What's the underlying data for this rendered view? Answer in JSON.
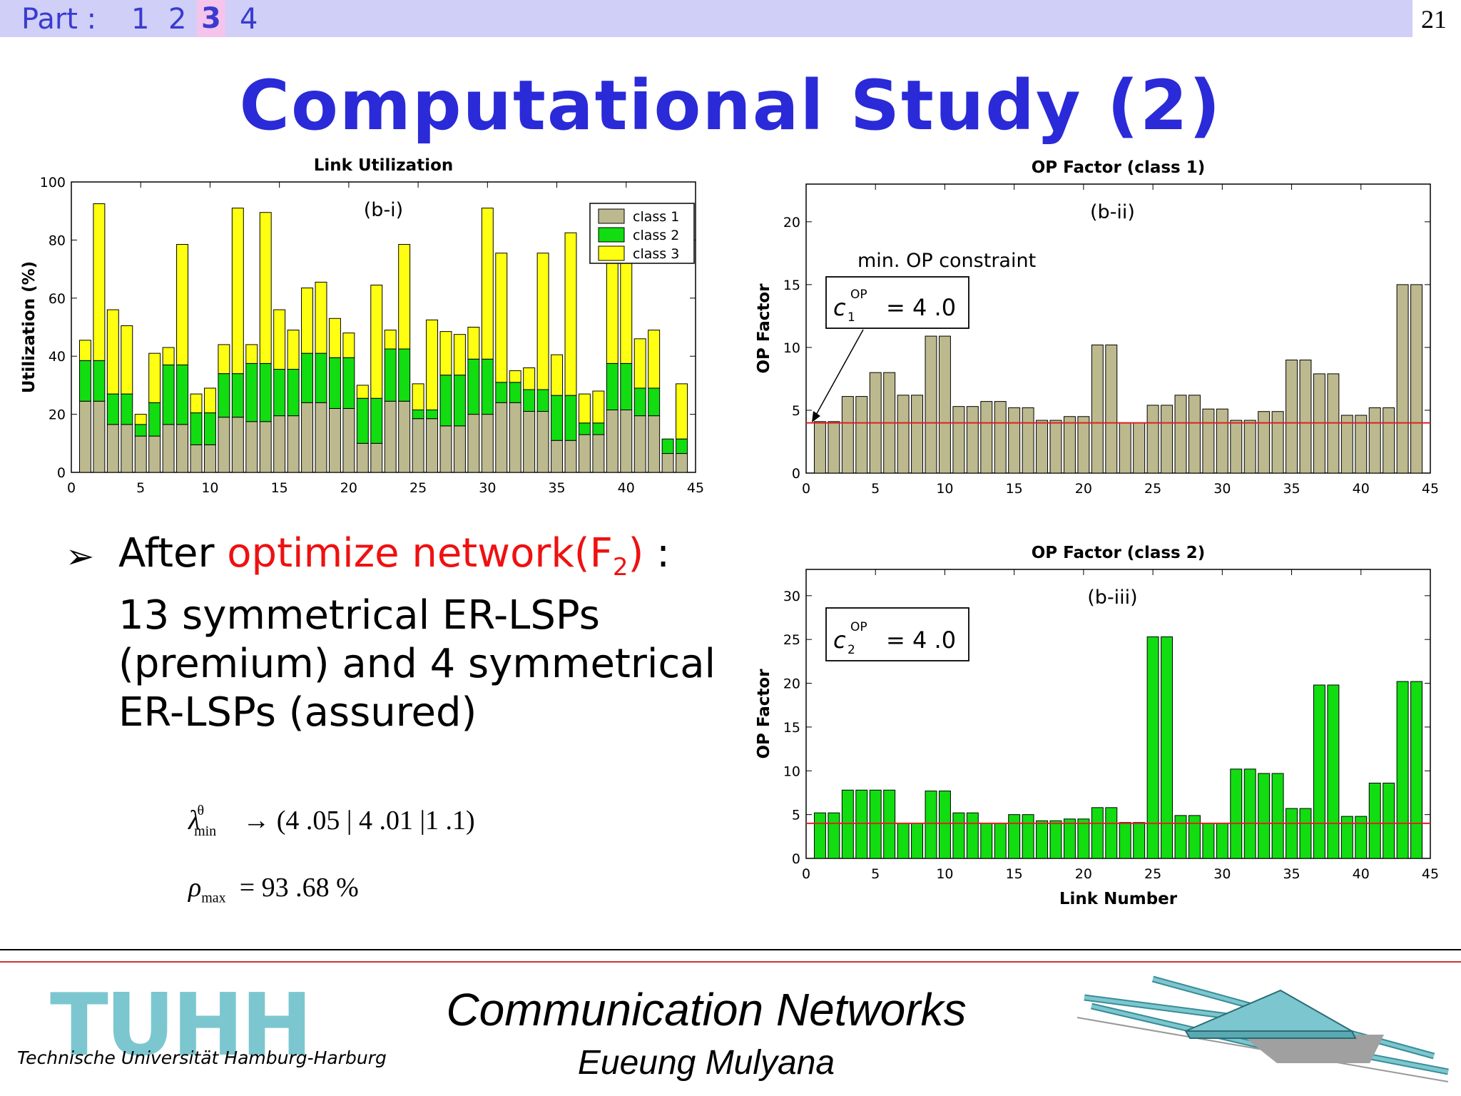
{
  "header": {
    "part_label": "Part :",
    "parts": [
      "1",
      "2",
      "3",
      "4"
    ],
    "active_part": "3",
    "page_number": "21"
  },
  "slide_title": "Computational Study (2)",
  "bullet": {
    "prefix": "After ",
    "highlight": "optimize network(F",
    "highlight_sub": "2",
    "highlight_end": ")",
    "suffix": " : 13 symmetrical ER-LSPs (premium) and 4 symmetrical ER-LSPs (assured)"
  },
  "formulas": {
    "lambda_sup": "θ",
    "lambda_sub": "min",
    "lambda_rhs": "→  (4 .05  | 4 .01  |1 .1)",
    "rho_sub": "max",
    "rho_rhs": "=  93 .68  %"
  },
  "footer": {
    "title": "Communication Networks",
    "author": "Eueung Mulyana",
    "logo": "TUHH",
    "logo_subtitle": "Technische Universität Hamburg-Harburg"
  },
  "chart_data": [
    {
      "type": "bar",
      "stacked": true,
      "title": "Link Utilization",
      "panel_label": "(b-i)",
      "xlabel": "",
      "ylabel": "Utilization (%)",
      "xlim": [
        0,
        45
      ],
      "ylim": [
        0,
        100
      ],
      "xticks": [
        0,
        5,
        10,
        15,
        20,
        25,
        30,
        35,
        40,
        45
      ],
      "yticks": [
        0,
        20,
        40,
        60,
        80,
        100
      ],
      "legend_position": "top-right",
      "x": [
        1,
        2,
        3,
        4,
        5,
        6,
        7,
        8,
        9,
        10,
        11,
        12,
        13,
        14,
        15,
        16,
        17,
        18,
        19,
        20,
        21,
        22,
        23,
        24,
        25,
        26,
        27,
        28,
        29,
        30,
        31,
        32,
        33,
        34,
        35,
        36,
        37,
        38,
        39,
        40,
        41,
        42,
        43,
        44
      ],
      "series": [
        {
          "name": "class 1",
          "color": "#bdb98f",
          "values": [
            24.5,
            24.5,
            16.5,
            16.5,
            12.5,
            12.5,
            16.5,
            16.5,
            9.5,
            9.5,
            19,
            19,
            17.5,
            17.5,
            19.5,
            19.5,
            24,
            24,
            22,
            22,
            10,
            10,
            24.5,
            24.5,
            18.5,
            18.5,
            16,
            16,
            20,
            20,
            24,
            24,
            21,
            21,
            11,
            11,
            13,
            13,
            21.5,
            21.5,
            19.5,
            19.5,
            6.5,
            6.5
          ]
        },
        {
          "name": "class 2",
          "color": "#11dd11",
          "values": [
            14,
            14,
            10.5,
            10.5,
            4,
            11.5,
            20.5,
            20.5,
            11,
            11,
            15,
            15,
            20,
            20,
            16,
            16,
            17,
            17,
            17.5,
            17.5,
            15.5,
            15.5,
            18,
            18,
            3,
            3,
            17.5,
            17.5,
            19,
            19,
            7,
            7,
            7.5,
            7.5,
            15.5,
            15.5,
            4,
            4,
            16,
            16,
            9.5,
            9.5,
            5,
            5
          ]
        },
        {
          "name": "class 3",
          "color": "#ffff11",
          "values": [
            7,
            54,
            29,
            23.5,
            3.5,
            17,
            6,
            41.5,
            6.5,
            8.5,
            10,
            57,
            6.5,
            52,
            20.5,
            13.5,
            22.5,
            24.5,
            13.5,
            8.5,
            4.5,
            39,
            6.5,
            36,
            9,
            31,
            15,
            14,
            11,
            52,
            44.5,
            4,
            7.5,
            47,
            14,
            56,
            10,
            11,
            34.5,
            53,
            17,
            20,
            0,
            19
          ]
        }
      ]
    },
    {
      "type": "bar",
      "title": "OP Factor (class 1)",
      "panel_label": "(b-ii)",
      "xlabel": "",
      "ylabel": "OP Factor",
      "xlim": [
        0,
        45
      ],
      "ylim": [
        0,
        23
      ],
      "xticks": [
        0,
        5,
        10,
        15,
        20,
        25,
        30,
        35,
        40,
        45
      ],
      "yticks": [
        0,
        5,
        10,
        15,
        20
      ],
      "threshold": 4,
      "annotation": "min. OP constraint",
      "constraint_sym": "c",
      "constraint_sub": "1",
      "constraint_sup": "OP",
      "constraint_rhs": "=  4 .0",
      "color": "#bdb98f",
      "x": [
        1,
        2,
        3,
        4,
        5,
        6,
        7,
        8,
        9,
        10,
        11,
        12,
        13,
        14,
        15,
        16,
        17,
        18,
        19,
        20,
        21,
        22,
        23,
        24,
        25,
        26,
        27,
        28,
        29,
        30,
        31,
        32,
        33,
        34,
        35,
        36,
        37,
        38,
        39,
        40,
        41,
        42,
        43,
        44
      ],
      "values": [
        4.1,
        4.1,
        6.1,
        6.1,
        8,
        8,
        6.2,
        6.2,
        10.9,
        10.9,
        5.3,
        5.3,
        5.7,
        5.7,
        5.2,
        5.2,
        4.2,
        4.2,
        4.5,
        4.5,
        10.2,
        10.2,
        4,
        4,
        5.4,
        5.4,
        6.2,
        6.2,
        5.1,
        5.1,
        4.2,
        4.2,
        4.9,
        4.9,
        9,
        9,
        7.9,
        7.9,
        4.6,
        4.6,
        5.2,
        5.2,
        15,
        15
      ]
    },
    {
      "type": "bar",
      "title": "OP Factor (class 2)",
      "panel_label": "(b-iii)",
      "xlabel": "Link Number",
      "ylabel": "OP Factor",
      "xlim": [
        0,
        45
      ],
      "ylim": [
        0,
        33
      ],
      "xticks": [
        0,
        5,
        10,
        15,
        20,
        25,
        30,
        35,
        40,
        45
      ],
      "yticks": [
        0,
        5,
        10,
        15,
        20,
        25,
        30
      ],
      "threshold": 4,
      "constraint_sym": "c",
      "constraint_sub": "2",
      "constraint_sup": "OP",
      "constraint_rhs": "=  4 .0",
      "color": "#11dd11",
      "x": [
        1,
        2,
        3,
        4,
        5,
        6,
        7,
        8,
        9,
        10,
        11,
        12,
        13,
        14,
        15,
        16,
        17,
        18,
        19,
        20,
        21,
        22,
        23,
        24,
        25,
        26,
        27,
        28,
        29,
        30,
        31,
        32,
        33,
        34,
        35,
        36,
        37,
        38,
        39,
        40,
        41,
        42,
        43,
        44
      ],
      "values": [
        5.2,
        5.2,
        7.8,
        7.8,
        7.8,
        7.8,
        4,
        4,
        7.7,
        7.7,
        5.2,
        5.2,
        4,
        4,
        5,
        5,
        4.3,
        4.3,
        4.5,
        4.5,
        5.8,
        5.8,
        4.1,
        4.1,
        25.3,
        25.3,
        4.9,
        4.9,
        4,
        4,
        10.2,
        10.2,
        9.7,
        9.7,
        5.7,
        5.7,
        19.8,
        19.8,
        4.8,
        4.8,
        8.6,
        8.6,
        20.2,
        20.2
      ]
    }
  ]
}
